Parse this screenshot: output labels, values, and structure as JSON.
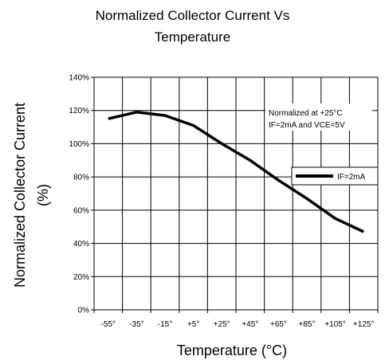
{
  "chart_data": {
    "type": "line",
    "title_lines": [
      "Normalized Collector Current Vs",
      "Temperature"
    ],
    "xlabel": "Temperature (°C)",
    "ylabel_lines": [
      "Normalized Collector Current",
      "(%)"
    ],
    "categories": [
      "-55°",
      "-35°",
      "-15°",
      "+5°",
      "+25°",
      "+45°",
      "+65°",
      "+85°",
      "+105°",
      "+125°"
    ],
    "x": [
      -55,
      -35,
      -15,
      5,
      25,
      45,
      65,
      85,
      105,
      125
    ],
    "ylim": [
      0,
      140
    ],
    "yticks": [
      0,
      20,
      40,
      60,
      80,
      100,
      120,
      140
    ],
    "ytick_labels": [
      "0%",
      "20%",
      "40%",
      "60%",
      "80%",
      "100%",
      "120%",
      "140%"
    ],
    "grid": true,
    "series": [
      {
        "name": "IF=2mA",
        "values": [
          115,
          119,
          117,
          111,
          100,
          90,
          78,
          67,
          55,
          47
        ]
      }
    ],
    "annotation_lines": [
      "Normalized at +25°C",
      "IF=2mA and VCE=5V"
    ],
    "legend_position": "right",
    "colors": {
      "line": "#000000",
      "grid": "#000000",
      "background": "#ffffff"
    }
  }
}
